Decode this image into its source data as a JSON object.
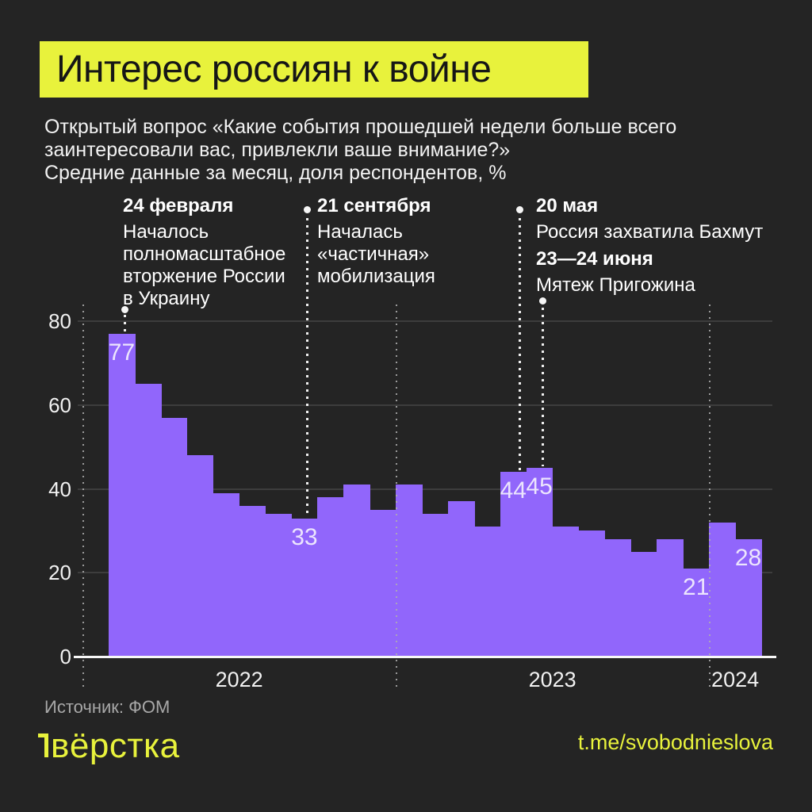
{
  "header": {
    "title": "Интерес россиян к войне",
    "subtitle_lines": [
      "Открытый вопрос «Какие события прошедшей недели больше всего",
      "заинтересовали вас, привлекли ваше внимание?»",
      "Средние данные за месяц, доля респондентов, %"
    ]
  },
  "annotations": [
    {
      "id": "invasion",
      "date": "24 февраля",
      "lines": [
        "Началось",
        "полномасштабное",
        "вторжение России",
        "в Украину"
      ],
      "month_index": 0
    },
    {
      "id": "mobilization",
      "date": "21 сентября",
      "lines": [
        "Началась",
        "«частичная»",
        "мобилизация"
      ],
      "month_index": 7
    },
    {
      "id": "bakhmut",
      "date": "20 мая",
      "lines": [
        "Россия захватила Бахмут"
      ],
      "month_index": 15
    },
    {
      "id": "mutiny",
      "date": "23—24 июня",
      "lines": [
        "Мятеж Пригожина"
      ],
      "month_index": 16
    }
  ],
  "chart_data": {
    "type": "bar",
    "title": "Интерес россиян к войне",
    "ylabel": "доля респондентов, %",
    "ylim": [
      0,
      80
    ],
    "yticks": [
      0,
      20,
      40,
      60,
      80
    ],
    "grid": true,
    "x": [
      "2022-02",
      "2022-03",
      "2022-04",
      "2022-05",
      "2022-06",
      "2022-07",
      "2022-08",
      "2022-09",
      "2022-10",
      "2022-11",
      "2022-12",
      "2023-01",
      "2023-02",
      "2023-03",
      "2023-04",
      "2023-05",
      "2023-06",
      "2023-07",
      "2023-08",
      "2023-09",
      "2023-10",
      "2023-11",
      "2023-12",
      "2024-01",
      "2024-02"
    ],
    "values": [
      77,
      65,
      57,
      48,
      39,
      36,
      34,
      33,
      38,
      41,
      35,
      41,
      34,
      37,
      31,
      44,
      45,
      31,
      30,
      28,
      25,
      28,
      21,
      32,
      28
    ],
    "point_labels": [
      {
        "month_index": 0,
        "text": "77"
      },
      {
        "month_index": 7,
        "text": "33"
      },
      {
        "month_index": 15,
        "text": "44"
      },
      {
        "month_index": 16,
        "text": "45"
      },
      {
        "month_index": 22,
        "text": "21"
      },
      {
        "month_index": 24,
        "text": "28"
      }
    ],
    "year_labels": [
      "2022",
      "2023",
      "2024"
    ],
    "bar_color": "#9166fb"
  },
  "footer": {
    "source": "Источник: ФОМ",
    "logo": "вёрстка",
    "link": "t.me/svobodnieslova"
  },
  "colors": {
    "background": "#242424",
    "accent_yellow": "#e8f23c",
    "bar_purple": "#9166fb",
    "text_white": "#f2f2f2"
  }
}
